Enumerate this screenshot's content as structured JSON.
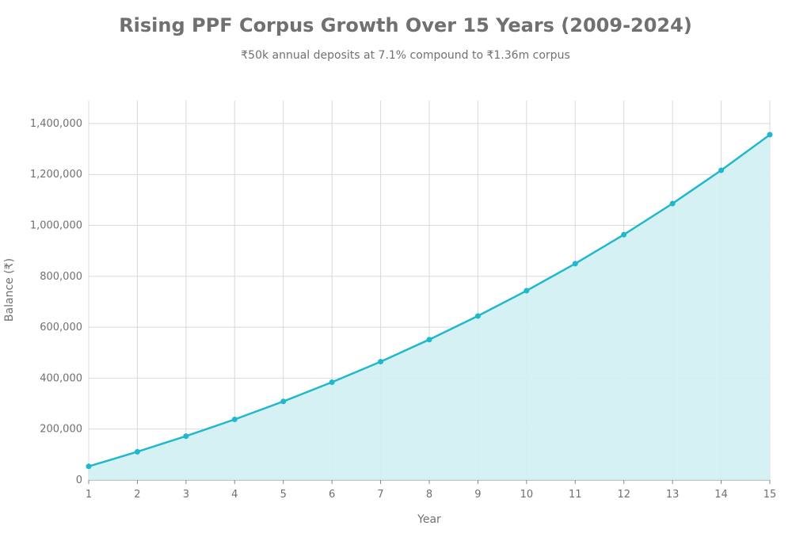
{
  "chart_data": {
    "type": "area",
    "title": "Rising PPF Corpus Growth Over 15 Years (2009-2024)",
    "subtitle": "₹50k annual deposits at 7.1% compound to ₹1.36m corpus",
    "xlabel": "Year",
    "ylabel": "Balance (₹)",
    "x": [
      1,
      2,
      3,
      4,
      5,
      6,
      7,
      8,
      9,
      10,
      11,
      12,
      13,
      14,
      15
    ],
    "series": [
      {
        "values": [
          53550,
          110902,
          172326,
          238111,
          308567,
          384026,
          464841,
          551395,
          644094,
          743375,
          849704,
          963583,
          1085548,
          1216172,
          1356070
        ]
      }
    ],
    "xlim": [
      1,
      15
    ],
    "ylim": [
      0,
      1490000
    ],
    "yticks": [
      0,
      200000,
      400000,
      600000,
      800000,
      1000000,
      1200000,
      1400000
    ],
    "ytick_labels": [
      "0",
      "200,000",
      "400,000",
      "600,000",
      "800,000",
      "1,000,000",
      "1,200,000",
      "1,400,000"
    ],
    "xtick_labels": [
      "1",
      "2",
      "3",
      "4",
      "5",
      "6",
      "7",
      "8",
      "9",
      "10",
      "11",
      "12",
      "13",
      "14",
      "15"
    ],
    "grid": true,
    "colors": {
      "line": "#1fb8cd",
      "fill": "#d2eff3",
      "grid": "#d9d9d9",
      "text": "#707070"
    }
  }
}
